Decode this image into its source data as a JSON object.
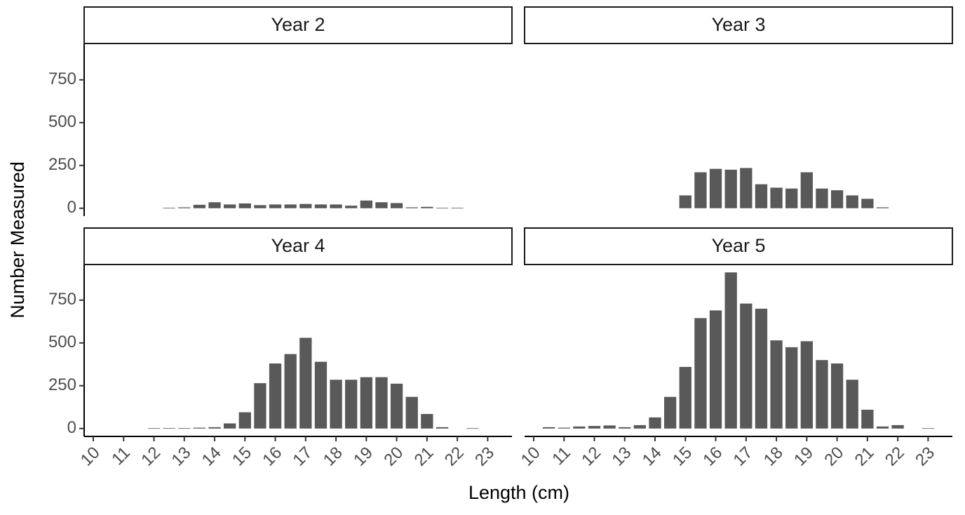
{
  "chart_data": {
    "type": "bar",
    "x_label": "Length (cm)",
    "y_label": "Number Measured",
    "color": "#595959",
    "grid": false,
    "xlim": [
      9.7,
      23.8
    ],
    "xticks": [
      10,
      11,
      12,
      13,
      14,
      15,
      16,
      17,
      18,
      19,
      20,
      21,
      22,
      23
    ],
    "ylim": [
      -46,
      958
    ],
    "yticks": [
      0,
      250,
      500,
      750
    ],
    "panels": [
      {
        "title": "Year 2",
        "x": [
          12.5,
          13,
          13.5,
          14,
          14.5,
          15,
          15.5,
          16,
          16.5,
          17,
          17.5,
          18,
          18.5,
          19,
          19.5,
          20,
          20.5,
          21,
          21.5,
          22
        ],
        "values": [
          2,
          5,
          20,
          35,
          22,
          28,
          18,
          22,
          22,
          25,
          22,
          22,
          15,
          45,
          35,
          30,
          5,
          8,
          2,
          2
        ]
      },
      {
        "title": "Year 3",
        "x": [
          15,
          15.5,
          16,
          16.5,
          17,
          17.5,
          18,
          18.5,
          19,
          19.5,
          20,
          20.5,
          21,
          21.5
        ],
        "values": [
          75,
          210,
          230,
          225,
          235,
          140,
          120,
          115,
          210,
          115,
          105,
          75,
          55,
          5
        ]
      },
      {
        "title": "Year 4",
        "x": [
          12,
          12.5,
          13,
          13.5,
          14,
          14.5,
          15,
          15.5,
          16,
          16.5,
          17,
          17.5,
          18,
          18.5,
          19,
          19.5,
          20,
          20.5,
          21,
          21.5,
          22.5
        ],
        "values": [
          2,
          3,
          3,
          5,
          8,
          30,
          95,
          265,
          380,
          435,
          530,
          390,
          285,
          285,
          300,
          300,
          262,
          185,
          85,
          8,
          2
        ]
      },
      {
        "title": "Year 5",
        "x": [
          10.5,
          11,
          11.5,
          12,
          12.5,
          13,
          13.5,
          14,
          14.5,
          15,
          15.5,
          16,
          16.5,
          17,
          17.5,
          18,
          18.5,
          19,
          19.5,
          20,
          20.5,
          21,
          21.5,
          22,
          23
        ],
        "values": [
          8,
          5,
          12,
          15,
          18,
          8,
          20,
          65,
          185,
          360,
          645,
          690,
          912,
          730,
          700,
          515,
          475,
          510,
          400,
          380,
          285,
          110,
          12,
          20,
          2
        ]
      }
    ]
  }
}
